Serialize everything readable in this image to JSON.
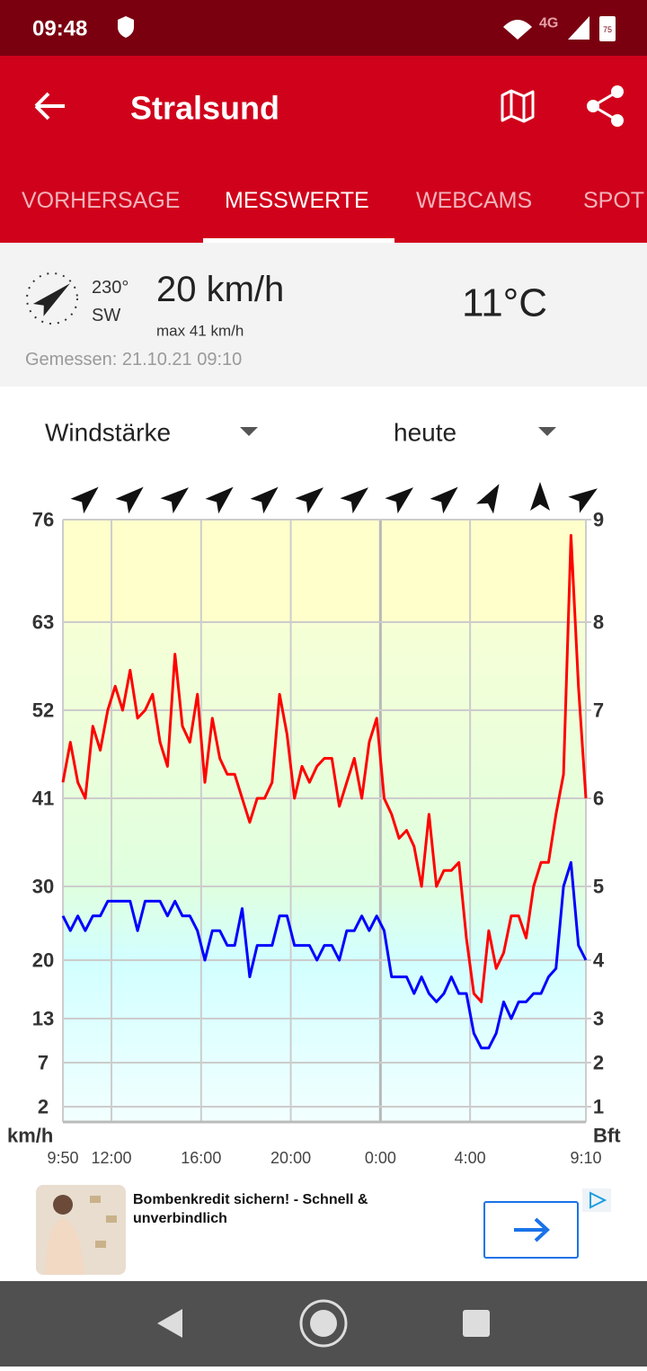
{
  "status_bar": {
    "time": "09:48",
    "network": "4G",
    "battery": "75"
  },
  "app_bar": {
    "title": "Stralsund"
  },
  "tabs": [
    "VORHERSAGE",
    "MESSWERTE",
    "WEBCAMS",
    "SPOT"
  ],
  "current": {
    "direction": "230°",
    "direction_name": "SW",
    "speed": "20 km/h",
    "max": "max 41 km/h",
    "temperature": "11°C",
    "measured": "Gemessen: 21.10.21 09:10"
  },
  "selectors": {
    "parameter": "Windstärke",
    "period": "heute"
  },
  "chart_data": {
    "type": "line",
    "x": [
      "9:50",
      "10:10",
      "10:30",
      "10:50",
      "11:10",
      "11:30",
      "11:50",
      "12:10",
      "12:30",
      "12:50",
      "13:10",
      "13:30",
      "13:50",
      "14:10",
      "14:30",
      "14:50",
      "15:10",
      "15:30",
      "15:50",
      "16:10",
      "16:30",
      "16:50",
      "17:10",
      "17:30",
      "17:50",
      "18:10",
      "18:30",
      "18:50",
      "19:10",
      "19:30",
      "19:50",
      "20:10",
      "20:30",
      "20:50",
      "21:10",
      "21:30",
      "21:50",
      "22:10",
      "22:30",
      "22:50",
      "23:10",
      "23:30",
      "23:50",
      "0:10",
      "0:30",
      "0:50",
      "1:10",
      "1:30",
      "1:50",
      "2:10",
      "2:30",
      "2:50",
      "3:10",
      "3:30",
      "3:50",
      "4:10",
      "4:30",
      "4:50",
      "5:10",
      "5:30",
      "5:50",
      "6:10",
      "6:30",
      "6:50",
      "7:10",
      "7:30",
      "7:50",
      "8:10",
      "8:30",
      "8:50",
      "9:10"
    ],
    "series": [
      {
        "color": "#ff0000",
        "values": [
          43,
          48,
          43,
          41,
          50,
          47,
          52,
          55,
          52,
          57,
          51,
          52,
          54,
          48,
          45,
          59,
          50,
          48,
          54,
          43,
          51,
          46,
          44,
          44,
          41,
          38,
          41,
          41,
          43,
          54,
          49,
          41,
          45,
          43,
          45,
          46,
          46,
          40,
          43,
          46,
          41,
          48,
          51,
          41,
          39,
          36,
          37,
          35,
          30,
          39,
          30,
          32,
          32,
          33,
          23,
          16,
          15,
          24,
          19,
          21,
          26,
          26,
          23,
          30,
          33,
          33,
          39,
          44,
          74,
          55,
          41
        ]
      },
      {
        "color": "#0000ff",
        "values": [
          26,
          24,
          26,
          24,
          26,
          26,
          28,
          28,
          28,
          28,
          24,
          28,
          28,
          28,
          26,
          28,
          26,
          26,
          24,
          20,
          24,
          24,
          22,
          22,
          27,
          18,
          22,
          22,
          22,
          26,
          26,
          22,
          22,
          22,
          20,
          22,
          22,
          20,
          24,
          24,
          26,
          24,
          26,
          24,
          18,
          18,
          18,
          16,
          18,
          16,
          15,
          16,
          18,
          16,
          16,
          11,
          9,
          9,
          11,
          15,
          13,
          15,
          15,
          16,
          16,
          18,
          19,
          30,
          33,
          22,
          20
        ]
      }
    ],
    "xticks": [
      "9:50",
      "12:00",
      "16:00",
      "20:00",
      "0:00",
      "4:00",
      "9:10"
    ],
    "ylim": [
      0,
      76
    ],
    "yticks": [
      2,
      7,
      13,
      20,
      30,
      41,
      52,
      63,
      76
    ],
    "ylabel": "km/h",
    "y2lim": [
      0,
      9
    ],
    "y2ticks": [
      1,
      2,
      3,
      4,
      5,
      6,
      7,
      8,
      9
    ],
    "y2label": "Bft",
    "wind_directions": [
      228,
      228,
      230,
      228,
      228,
      230,
      230,
      230,
      228,
      210,
      180,
      235
    ],
    "grid": true
  },
  "ad": {
    "title": "Bombenkredit sichern! - Schnell & unverbindlich"
  }
}
